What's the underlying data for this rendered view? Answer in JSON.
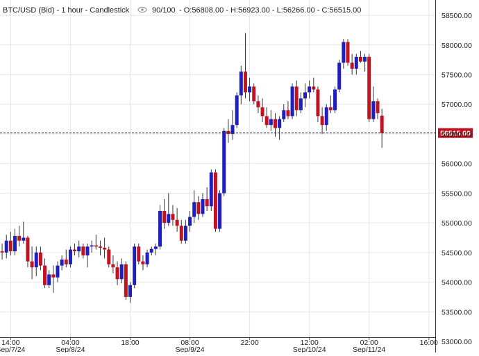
{
  "header": {
    "symbol": "BTC/USD (Bid) - 1 hour - Candlestick",
    "eye_icon": "eye-icon",
    "quality": "90/100",
    "ohlc": "- O:56808.00 - H:56923.00 - L:56266.00 - C:56515.00"
  },
  "colors": {
    "up": "#1f1fbf",
    "down": "#c1121f",
    "grid": "#e6e6e6",
    "price_tag_bg": "#c1121f",
    "price_tag_text": "#ffffff"
  },
  "current_price": 56515.0,
  "current_price_label": "56515.00",
  "chart_data": {
    "type": "candlestick",
    "y_range": [
      53000,
      58700
    ],
    "y_ticks": [
      53000,
      53500,
      54000,
      54500,
      55000,
      55500,
      56000,
      56500,
      57000,
      57500,
      58000,
      58500
    ],
    "y_tick_labels": [
      "53000.00",
      "53500.00",
      "54000.00",
      "54500.00",
      "55000.00",
      "55500.00",
      "56000.00",
      "56500.00",
      "57000.00",
      "57500.00",
      "58000.00",
      "58500.00"
    ],
    "x_time_range": [
      "2024-09-07T11:30",
      "2024-09-11T17:30"
    ],
    "x_ticks": [
      {
        "time": "2024-09-07T14:00",
        "time_label": "14:00",
        "date_label": "Sep/7/24"
      },
      {
        "time": "2024-09-08T04:00",
        "time_label": "04:00",
        "date_label": "Sep/8/24"
      },
      {
        "time": "2024-09-08T18:00",
        "time_label": "18:00",
        "date_label": ""
      },
      {
        "time": "2024-09-09T08:00",
        "time_label": "08:00",
        "date_label": "Sep/9/24"
      },
      {
        "time": "2024-09-09T22:00",
        "time_label": "22:00",
        "date_label": ""
      },
      {
        "time": "2024-09-10T12:00",
        "time_label": "12:00",
        "date_label": "Sep/10/24"
      },
      {
        "time": "2024-09-11T02:00",
        "time_label": "02:00",
        "date_label": "Sep/11/24"
      },
      {
        "time": "2024-09-11T16:00",
        "time_label": "16:00",
        "date_label": ""
      }
    ],
    "candles": [
      {
        "t": "2024-09-07T12:00",
        "o": 54520,
        "h": 54650,
        "l": 54380,
        "c": 54500
      },
      {
        "t": "2024-09-07T13:00",
        "o": 54500,
        "h": 54800,
        "l": 54400,
        "c": 54700
      },
      {
        "t": "2024-09-07T14:00",
        "o": 54700,
        "h": 54850,
        "l": 54450,
        "c": 54520
      },
      {
        "t": "2024-09-07T15:00",
        "o": 54520,
        "h": 54900,
        "l": 54450,
        "c": 54780
      },
      {
        "t": "2024-09-07T16:00",
        "o": 54780,
        "h": 54950,
        "l": 54600,
        "c": 54700
      },
      {
        "t": "2024-09-07T17:00",
        "o": 54700,
        "h": 55020,
        "l": 54650,
        "c": 54750
      },
      {
        "t": "2024-09-07T18:00",
        "o": 54750,
        "h": 54780,
        "l": 54250,
        "c": 54350
      },
      {
        "t": "2024-09-07T19:00",
        "o": 54350,
        "h": 54600,
        "l": 54050,
        "c": 54250
      },
      {
        "t": "2024-09-07T20:00",
        "o": 54250,
        "h": 54600,
        "l": 54100,
        "c": 54500
      },
      {
        "t": "2024-09-07T21:00",
        "o": 54500,
        "h": 54600,
        "l": 54200,
        "c": 54280
      },
      {
        "t": "2024-09-07T22:00",
        "o": 54280,
        "h": 54400,
        "l": 53900,
        "c": 53950
      },
      {
        "t": "2024-09-07T23:00",
        "o": 53950,
        "h": 54200,
        "l": 53900,
        "c": 54130
      },
      {
        "t": "2024-09-08T00:00",
        "o": 54130,
        "h": 54280,
        "l": 53820,
        "c": 54080
      },
      {
        "t": "2024-09-08T01:00",
        "o": 54080,
        "h": 54350,
        "l": 54000,
        "c": 54280
      },
      {
        "t": "2024-09-08T02:00",
        "o": 54280,
        "h": 54450,
        "l": 54200,
        "c": 54380
      },
      {
        "t": "2024-09-08T03:00",
        "o": 54380,
        "h": 54550,
        "l": 54250,
        "c": 54300
      },
      {
        "t": "2024-09-08T04:00",
        "o": 54300,
        "h": 54600,
        "l": 54250,
        "c": 54550
      },
      {
        "t": "2024-09-08T05:00",
        "o": 54550,
        "h": 54650,
        "l": 54450,
        "c": 54520
      },
      {
        "t": "2024-09-08T06:00",
        "o": 54520,
        "h": 54700,
        "l": 54420,
        "c": 54600
      },
      {
        "t": "2024-09-08T07:00",
        "o": 54600,
        "h": 54650,
        "l": 54400,
        "c": 54450
      },
      {
        "t": "2024-09-08T08:00",
        "o": 54450,
        "h": 54650,
        "l": 54250,
        "c": 54600
      },
      {
        "t": "2024-09-08T09:00",
        "o": 54600,
        "h": 54700,
        "l": 54500,
        "c": 54620
      },
      {
        "t": "2024-09-08T10:00",
        "o": 54620,
        "h": 54800,
        "l": 54550,
        "c": 54600
      },
      {
        "t": "2024-09-08T11:00",
        "o": 54600,
        "h": 54700,
        "l": 54450,
        "c": 54580
      },
      {
        "t": "2024-09-08T12:00",
        "o": 54580,
        "h": 54750,
        "l": 54400,
        "c": 54550
      },
      {
        "t": "2024-09-08T13:00",
        "o": 54550,
        "h": 54600,
        "l": 54250,
        "c": 54300
      },
      {
        "t": "2024-09-08T14:00",
        "o": 54300,
        "h": 54450,
        "l": 54150,
        "c": 54250
      },
      {
        "t": "2024-09-08T15:00",
        "o": 54250,
        "h": 54350,
        "l": 53950,
        "c": 54050
      },
      {
        "t": "2024-09-08T16:00",
        "o": 54050,
        "h": 54400,
        "l": 53980,
        "c": 54300
      },
      {
        "t": "2024-09-08T17:00",
        "o": 54300,
        "h": 54350,
        "l": 53700,
        "c": 53750
      },
      {
        "t": "2024-09-08T18:00",
        "o": 53750,
        "h": 54000,
        "l": 53650,
        "c": 53950
      },
      {
        "t": "2024-09-08T19:00",
        "o": 53950,
        "h": 54650,
        "l": 53900,
        "c": 54600
      },
      {
        "t": "2024-09-08T20:00",
        "o": 54600,
        "h": 54650,
        "l": 54300,
        "c": 54350
      },
      {
        "t": "2024-09-08T21:00",
        "o": 54350,
        "h": 54450,
        "l": 54200,
        "c": 54300
      },
      {
        "t": "2024-09-08T22:00",
        "o": 54300,
        "h": 54550,
        "l": 54250,
        "c": 54500
      },
      {
        "t": "2024-09-08T23:00",
        "o": 54500,
        "h": 54600,
        "l": 54450,
        "c": 54560
      },
      {
        "t": "2024-09-09T00:00",
        "o": 54560,
        "h": 54650,
        "l": 54450,
        "c": 54600
      },
      {
        "t": "2024-09-09T01:00",
        "o": 54600,
        "h": 55300,
        "l": 54550,
        "c": 55200
      },
      {
        "t": "2024-09-09T02:00",
        "o": 55200,
        "h": 55400,
        "l": 54900,
        "c": 55000
      },
      {
        "t": "2024-09-09T03:00",
        "o": 55000,
        "h": 55500,
        "l": 54950,
        "c": 55150
      },
      {
        "t": "2024-09-09T04:00",
        "o": 55150,
        "h": 55300,
        "l": 54950,
        "c": 55050
      },
      {
        "t": "2024-09-09T05:00",
        "o": 55050,
        "h": 55250,
        "l": 54850,
        "c": 54950
      },
      {
        "t": "2024-09-09T06:00",
        "o": 54950,
        "h": 55050,
        "l": 54650,
        "c": 54700
      },
      {
        "t": "2024-09-09T07:00",
        "o": 54700,
        "h": 55050,
        "l": 54650,
        "c": 54950
      },
      {
        "t": "2024-09-09T08:00",
        "o": 54950,
        "h": 55200,
        "l": 54850,
        "c": 55100
      },
      {
        "t": "2024-09-09T09:00",
        "o": 55100,
        "h": 55550,
        "l": 55000,
        "c": 55350
      },
      {
        "t": "2024-09-09T10:00",
        "o": 55350,
        "h": 55450,
        "l": 55050,
        "c": 55150
      },
      {
        "t": "2024-09-09T11:00",
        "o": 55150,
        "h": 55500,
        "l": 55100,
        "c": 55400
      },
      {
        "t": "2024-09-09T12:00",
        "o": 55400,
        "h": 55600,
        "l": 55200,
        "c": 55280
      },
      {
        "t": "2024-09-09T13:00",
        "o": 55280,
        "h": 55900,
        "l": 55200,
        "c": 55850
      },
      {
        "t": "2024-09-09T14:00",
        "o": 55850,
        "h": 55900,
        "l": 54850,
        "c": 54900
      },
      {
        "t": "2024-09-09T15:00",
        "o": 54900,
        "h": 55550,
        "l": 54850,
        "c": 55500
      },
      {
        "t": "2024-09-09T16:00",
        "o": 55500,
        "h": 56600,
        "l": 55450,
        "c": 56550
      },
      {
        "t": "2024-09-09T17:00",
        "o": 56550,
        "h": 56750,
        "l": 56350,
        "c": 56500
      },
      {
        "t": "2024-09-09T18:00",
        "o": 56500,
        "h": 56900,
        "l": 56400,
        "c": 56650
      },
      {
        "t": "2024-09-09T19:00",
        "o": 56650,
        "h": 57200,
        "l": 56600,
        "c": 57150
      },
      {
        "t": "2024-09-09T20:00",
        "o": 57150,
        "h": 57650,
        "l": 57000,
        "c": 57550
      },
      {
        "t": "2024-09-09T21:00",
        "o": 57550,
        "h": 58200,
        "l": 57100,
        "c": 57200
      },
      {
        "t": "2024-09-09T22:00",
        "o": 57200,
        "h": 57450,
        "l": 57050,
        "c": 57300
      },
      {
        "t": "2024-09-09T23:00",
        "o": 57300,
        "h": 57350,
        "l": 57000,
        "c": 57050
      },
      {
        "t": "2024-09-10T00:00",
        "o": 57050,
        "h": 57150,
        "l": 56850,
        "c": 56950
      },
      {
        "t": "2024-09-10T01:00",
        "o": 56950,
        "h": 57100,
        "l": 56700,
        "c": 56800
      },
      {
        "t": "2024-09-10T02:00",
        "o": 56800,
        "h": 56950,
        "l": 56600,
        "c": 56650
      },
      {
        "t": "2024-09-10T03:00",
        "o": 56650,
        "h": 56900,
        "l": 56550,
        "c": 56750
      },
      {
        "t": "2024-09-10T04:00",
        "o": 56750,
        "h": 56850,
        "l": 56450,
        "c": 56600
      },
      {
        "t": "2024-09-10T05:00",
        "o": 56600,
        "h": 56800,
        "l": 56400,
        "c": 56750
      },
      {
        "t": "2024-09-10T06:00",
        "o": 56750,
        "h": 57000,
        "l": 56700,
        "c": 56900
      },
      {
        "t": "2024-09-10T07:00",
        "o": 56900,
        "h": 57050,
        "l": 56750,
        "c": 56800
      },
      {
        "t": "2024-09-10T08:00",
        "o": 56800,
        "h": 57350,
        "l": 56750,
        "c": 57300
      },
      {
        "t": "2024-09-10T09:00",
        "o": 57300,
        "h": 57400,
        "l": 56800,
        "c": 56900
      },
      {
        "t": "2024-09-10T10:00",
        "o": 56900,
        "h": 57200,
        "l": 56850,
        "c": 57100
      },
      {
        "t": "2024-09-10T11:00",
        "o": 57100,
        "h": 57350,
        "l": 56950,
        "c": 57200
      },
      {
        "t": "2024-09-10T12:00",
        "o": 57200,
        "h": 57400,
        "l": 57100,
        "c": 57300
      },
      {
        "t": "2024-09-10T13:00",
        "o": 57300,
        "h": 57450,
        "l": 57200,
        "c": 57250
      },
      {
        "t": "2024-09-10T14:00",
        "o": 57250,
        "h": 57300,
        "l": 56700,
        "c": 56800
      },
      {
        "t": "2024-09-10T15:00",
        "o": 56800,
        "h": 56950,
        "l": 56500,
        "c": 56650
      },
      {
        "t": "2024-09-10T16:00",
        "o": 56650,
        "h": 57000,
        "l": 56550,
        "c": 56950
      },
      {
        "t": "2024-09-10T17:00",
        "o": 56950,
        "h": 57150,
        "l": 56850,
        "c": 56900
      },
      {
        "t": "2024-09-10T18:00",
        "o": 56900,
        "h": 57300,
        "l": 56850,
        "c": 57250
      },
      {
        "t": "2024-09-10T19:00",
        "o": 57250,
        "h": 57750,
        "l": 57200,
        "c": 57700
      },
      {
        "t": "2024-09-10T20:00",
        "o": 57700,
        "h": 58100,
        "l": 57600,
        "c": 58050
      },
      {
        "t": "2024-09-10T21:00",
        "o": 58050,
        "h": 58100,
        "l": 57650,
        "c": 57700
      },
      {
        "t": "2024-09-10T22:00",
        "o": 57700,
        "h": 57850,
        "l": 57500,
        "c": 57600
      },
      {
        "t": "2024-09-10T23:00",
        "o": 57600,
        "h": 57850,
        "l": 57500,
        "c": 57800
      },
      {
        "t": "2024-09-11T00:00",
        "o": 57800,
        "h": 57900,
        "l": 57700,
        "c": 57720
      },
      {
        "t": "2024-09-11T01:00",
        "o": 57720,
        "h": 57850,
        "l": 57550,
        "c": 57800
      },
      {
        "t": "2024-09-11T02:00",
        "o": 57800,
        "h": 57850,
        "l": 56700,
        "c": 56750
      },
      {
        "t": "2024-09-11T03:00",
        "o": 56750,
        "h": 57300,
        "l": 56700,
        "c": 57050
      },
      {
        "t": "2024-09-11T04:00",
        "o": 57050,
        "h": 57100,
        "l": 56750,
        "c": 56850
      },
      {
        "t": "2024-09-11T05:00",
        "o": 56808,
        "h": 56923,
        "l": 56266,
        "c": 56515
      }
    ]
  }
}
